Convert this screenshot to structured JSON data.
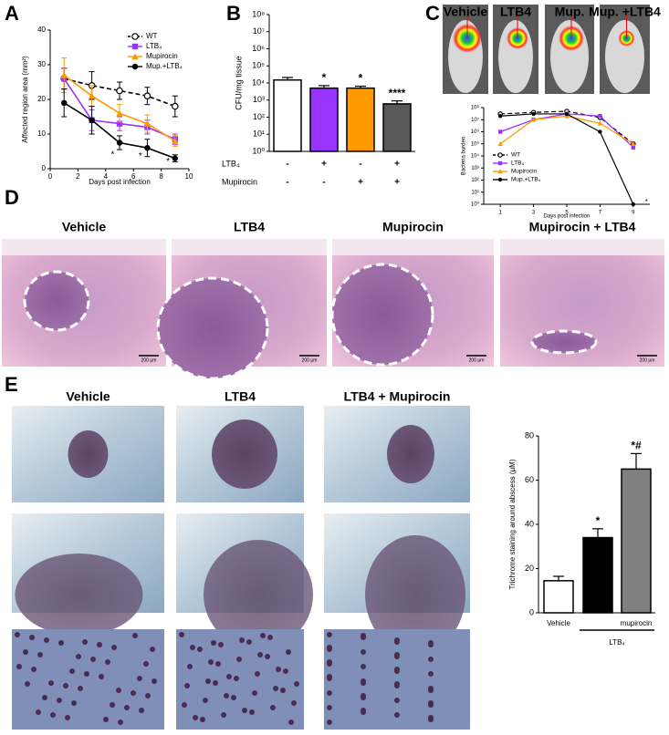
{
  "chart_data": [
    {
      "type": "line",
      "label": "A",
      "x_label": "Days post infection",
      "y_label": "Affected region area (mm²)",
      "x": [
        1,
        3,
        5,
        7,
        9
      ],
      "xlim": [
        0,
        10
      ],
      "xticks": [
        0,
        2,
        4,
        6,
        8,
        10
      ],
      "ylim": [
        0,
        40
      ],
      "yticks": [
        0,
        10,
        20,
        30,
        40
      ],
      "legend": "upper right",
      "series": [
        {
          "name": "WT",
          "color": "#000000",
          "dashed": true,
          "marker": "open-circle",
          "values": [
            26,
            24,
            22.5,
            21,
            18
          ],
          "errors": [
            3,
            4,
            2.5,
            2.5,
            3
          ]
        },
        {
          "name": "LTB₄",
          "color": "#9933ff",
          "marker": "square",
          "values": [
            26,
            14,
            13,
            12,
            8.5
          ],
          "errors": [
            3,
            3,
            2,
            2,
            1.5
          ]
        },
        {
          "name": "Mupirocin",
          "color": "#ff9900",
          "marker": "triangle",
          "values": [
            27,
            21,
            16,
            13,
            8
          ],
          "errors": [
            5,
            3,
            2.5,
            2.5,
            1.5
          ]
        },
        {
          "name": "Mup.+LTB₄",
          "color": "#000000",
          "marker": "circle",
          "values": [
            19,
            14,
            7.5,
            6,
            3
          ],
          "errors": [
            4,
            4,
            2,
            2.5,
            1
          ]
        }
      ],
      "annotations": [
        {
          "text": "*",
          "x": 4.5,
          "y": 3.5
        },
        {
          "text": "*",
          "x": 6.5,
          "y": 3
        },
        {
          "text": "*",
          "x": 8.5,
          "y": 1.5
        }
      ]
    },
    {
      "type": "bar",
      "label": "B",
      "y_label": "CFU/mg tissue",
      "log_scale": true,
      "ylim": [
        1,
        100000000
      ],
      "yticks": [
        {
          "value": 1,
          "label": "10⁰"
        },
        {
          "value": 10,
          "label": "10¹"
        },
        {
          "value": 100,
          "label": "10²"
        },
        {
          "value": 1000,
          "label": "10³"
        },
        {
          "value": 10000,
          "label": "10⁴"
        },
        {
          "value": 100000,
          "label": "10⁵"
        },
        {
          "value": 1000000,
          "label": "10⁶"
        },
        {
          "value": 10000000,
          "label": "10⁷"
        },
        {
          "value": 100000000,
          "label": "10⁸"
        }
      ],
      "conditions": [
        {
          "name": "LTB₄",
          "values": [
            "-",
            "+",
            "-",
            "+"
          ]
        },
        {
          "name": "Mupirocin",
          "values": [
            "-",
            "-",
            "+",
            "+"
          ]
        }
      ],
      "values": [
        15000,
        5000,
        5000,
        600
      ],
      "errors": [
        6000,
        2000,
        1500,
        300
      ],
      "colors": [
        "#ffffff",
        "#9933ff",
        "#ff9900",
        "#595959"
      ],
      "significance": [
        null,
        "*",
        "*",
        "****"
      ]
    },
    {
      "type": "line",
      "label": "C",
      "images": [
        "Vehicle",
        "LTB4",
        "Mup.",
        "Mup. +LTB4"
      ],
      "x_label": "Days post infection",
      "y_label": "Bacteria burden",
      "log_scale": true,
      "x": [
        1,
        3,
        5,
        7,
        9
      ],
      "xlim": [
        0,
        10
      ],
      "xticks": [
        1,
        3,
        5,
        7,
        9
      ],
      "ylim": [
        1,
        100000000
      ],
      "yticks": [
        {
          "value": 1,
          "label": "10⁰"
        },
        {
          "value": 10,
          "label": "10¹"
        },
        {
          "value": 100,
          "label": "10²"
        },
        {
          "value": 1000,
          "label": "10³"
        },
        {
          "value": 10000,
          "label": "10⁴"
        },
        {
          "value": 100000,
          "label": "10⁵"
        },
        {
          "value": 1000000,
          "label": "10⁶"
        },
        {
          "value": 10000000,
          "label": "10⁷"
        },
        {
          "value": 100000000,
          "label": "10⁸"
        }
      ],
      "legend": "lower left",
      "series": [
        {
          "name": "WT",
          "color": "#000000",
          "dashed": true,
          "marker": "open-circle",
          "values": [
            30000000,
            40000000,
            50000000,
            15000000,
            100000
          ]
        },
        {
          "name": "LTB₄",
          "color": "#9933ff",
          "marker": "square",
          "values": [
            1000000,
            10000000,
            30000000,
            20000000,
            50000
          ]
        },
        {
          "name": "Mupirocin",
          "color": "#ff9900",
          "marker": "triangle",
          "values": [
            100000,
            10000000,
            20000000,
            5000000,
            100000
          ]
        },
        {
          "name": "Mup.+LTB₄",
          "color": "#000000",
          "marker": "circle",
          "values": [
            20000000,
            30000000,
            30000000,
            1000000,
            1
          ]
        }
      ],
      "annotations": [
        {
          "text": "*",
          "x": 9.8,
          "y": 1
        }
      ]
    },
    {
      "type": "bar",
      "y_label": "Trichrome staining  around abscess (μM)",
      "categories": [
        "Vehicle",
        null,
        "mupirocin"
      ],
      "group_label": "LTB₄",
      "values": [
        14.5,
        34,
        65
      ],
      "errors": [
        2,
        4,
        7
      ],
      "colors": [
        "#ffffff",
        "#000000",
        "#808080"
      ],
      "ylim": [
        0,
        80
      ],
      "yticks": [
        0,
        20,
        40,
        60,
        80
      ],
      "significance": [
        null,
        "*",
        "*#"
      ]
    }
  ],
  "panels": {
    "D": {
      "label": "D",
      "captions": [
        "Vehicle",
        "LTB4",
        "Mupirocin",
        "Mupirocin + LTB4"
      ],
      "scale_bar": "200 μm"
    },
    "E": {
      "label": "E",
      "captions": [
        "Vehicle",
        "LTB4",
        "LTB4 + Mupirocin"
      ]
    }
  }
}
